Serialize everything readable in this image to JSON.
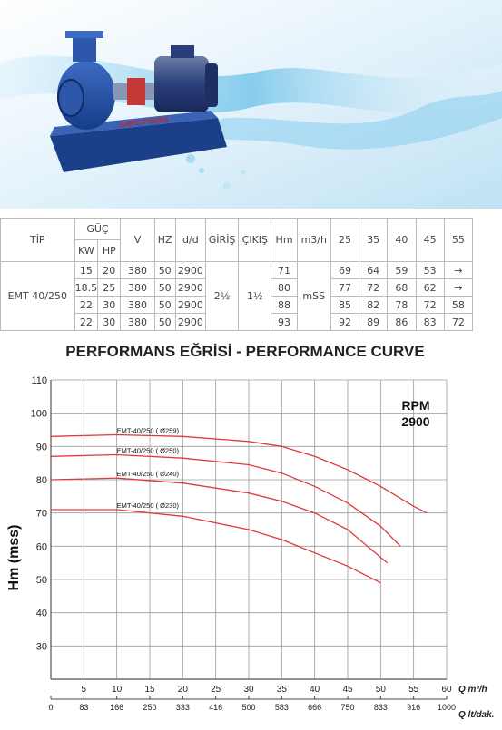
{
  "table": {
    "headers": {
      "tip": "TİP",
      "guc": "GÜÇ",
      "kw": "KW",
      "hp": "HP",
      "v": "V",
      "hz": "HZ",
      "dd": "d/d",
      "giris": "GİRİŞ",
      "cikis": "ÇIKIŞ",
      "hm": "Hm",
      "m3h": "m3/h",
      "flows": [
        "25",
        "35",
        "40",
        "45",
        "55"
      ]
    },
    "model": "EMT 40/250",
    "giris": "2½",
    "cikis": "1½",
    "unit": "mSS",
    "rows": [
      {
        "kw": "15",
        "hp": "20",
        "v": "380",
        "hz": "50",
        "dd": "2900",
        "hm": "71",
        "vals": [
          "69",
          "64",
          "59",
          "53",
          "→"
        ]
      },
      {
        "kw": "18.5",
        "hp": "25",
        "v": "380",
        "hz": "50",
        "dd": "2900",
        "hm": "80",
        "vals": [
          "77",
          "72",
          "68",
          "62",
          "→"
        ]
      },
      {
        "kw": "22",
        "hp": "30",
        "v": "380",
        "hz": "50",
        "dd": "2900",
        "hm": "88",
        "vals": [
          "85",
          "82",
          "78",
          "72",
          "58"
        ]
      },
      {
        "kw": "22",
        "hp": "30",
        "v": "380",
        "hz": "50",
        "dd": "2900",
        "hm": "93",
        "vals": [
          "92",
          "89",
          "86",
          "83",
          "72"
        ]
      }
    ]
  },
  "hero": {
    "brand_text": "EMPO POMPA",
    "colors": {
      "pump": "#1f4f9e",
      "base": "#1c3f8a",
      "water": "#7ec8ea"
    }
  },
  "chart_title": "PERFORMANS EĞRİSİ - PERFORMANCE CURVE",
  "chart_data": {
    "type": "line",
    "ylabel": "Hm (mss)",
    "xlabel": "Q  m³/h",
    "x2label": "Q  lt/dak.",
    "ylim": [
      20,
      110
    ],
    "xlim": [
      0,
      60
    ],
    "y_ticks": [
      30,
      40,
      50,
      60,
      70,
      80,
      90,
      100,
      110
    ],
    "x_ticks": [
      5,
      10,
      15,
      20,
      25,
      30,
      35,
      40,
      45,
      50,
      55,
      60
    ],
    "x2_ticks": [
      "0",
      "83",
      "166",
      "250",
      "333",
      "416",
      "500",
      "583",
      "666",
      "750",
      "833",
      "916",
      "1000"
    ],
    "rpm_label": "RPM",
    "rpm_value": "2900",
    "grid": true,
    "line_color": "#e0393b",
    "series": [
      {
        "name": "EMT-40/250  ( Ø259)",
        "x": [
          0,
          10,
          20,
          30,
          35,
          40,
          45,
          50,
          55,
          57
        ],
        "y": [
          93,
          93.5,
          93,
          91.5,
          90,
          87,
          83,
          78,
          72,
          70
        ]
      },
      {
        "name": "EMT-40/250  ( Ø250)",
        "x": [
          0,
          10,
          20,
          30,
          35,
          40,
          45,
          50,
          53
        ],
        "y": [
          87,
          87.5,
          86.5,
          84.5,
          82,
          78,
          73,
          66,
          60
        ]
      },
      {
        "name": "EMT-40/250  ( Ø240)",
        "x": [
          0,
          10,
          20,
          30,
          35,
          40,
          45,
          51
        ],
        "y": [
          80,
          80.5,
          79,
          76,
          73.5,
          70,
          65,
          55
        ]
      },
      {
        "name": "EMT-40/250  ( Ø230)",
        "x": [
          0,
          10,
          20,
          30,
          35,
          40,
          45,
          50
        ],
        "y": [
          71,
          71,
          69,
          65,
          62,
          58,
          54,
          49
        ]
      }
    ]
  }
}
